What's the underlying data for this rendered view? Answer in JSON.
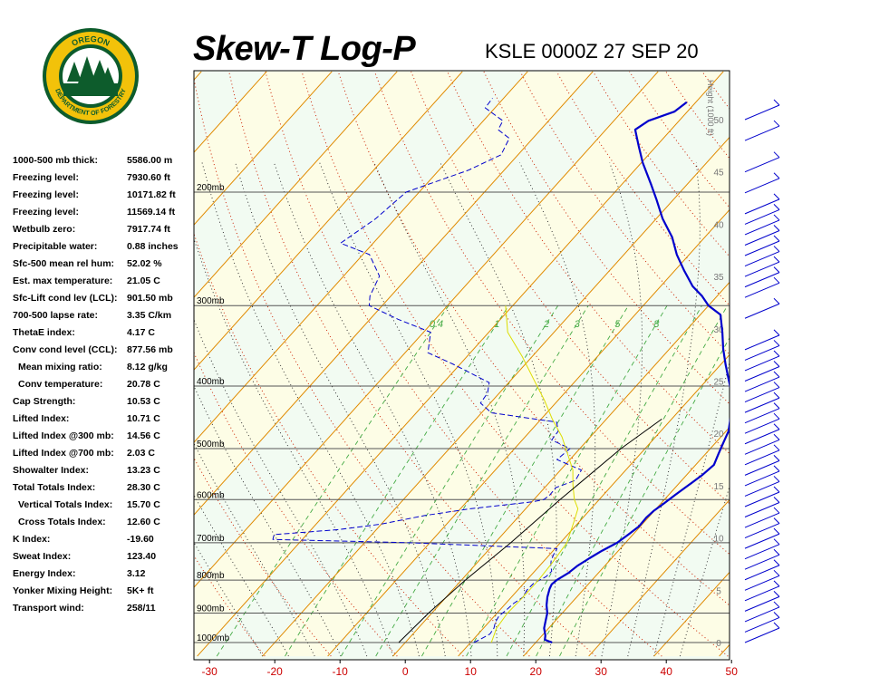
{
  "header": {
    "title": "Skew-T Log-P",
    "station": "KSLE 0000Z 27 SEP 20"
  },
  "logo": {
    "top_text": "OREGON",
    "bottom_text": "DEPARTMENT OF FORESTRY",
    "colors": {
      "ring": "#f2c20a",
      "inner": "#0d5c2c",
      "sky": "#ffffff",
      "trees": "#0d5c2c"
    }
  },
  "indices": [
    {
      "label": "1000-500 mb thick:",
      "value": "5586.00 m",
      "indent": false
    },
    {
      "label": "Freezing level:",
      "value": "7930.60 ft",
      "indent": false
    },
    {
      "label": "Freezing level:",
      "value": "10171.82 ft",
      "indent": false
    },
    {
      "label": "Freezing level:",
      "value": "11569.14 ft",
      "indent": false
    },
    {
      "label": "Wetbulb zero:",
      "value": "7917.74 ft",
      "indent": false
    },
    {
      "label": "Precipitable water:",
      "value": "0.88 inches",
      "indent": false
    },
    {
      "label": "Sfc-500 mean rel hum:",
      "value": "52.02 %",
      "indent": false
    },
    {
      "label": "Est. max temperature:",
      "value": "21.05 C",
      "indent": false
    },
    {
      "label": "Sfc-Lift cond lev (LCL):",
      "value": "901.50 mb",
      "indent": false
    },
    {
      "label": "700-500 lapse rate:",
      "value": "3.35 C/km",
      "indent": false
    },
    {
      "label": "ThetaE index:",
      "value": "4.17 C",
      "indent": false
    },
    {
      "label": "Conv cond level (CCL):",
      "value": "877.56 mb",
      "indent": false
    },
    {
      "label": "Mean mixing ratio:",
      "value": "8.12 g/kg",
      "indent": true
    },
    {
      "label": "Conv temperature:",
      "value": "20.78 C",
      "indent": true
    },
    {
      "label": "Cap Strength:",
      "value": "10.53 C",
      "indent": false
    },
    {
      "label": "Lifted Index:",
      "value": "10.71 C",
      "indent": false
    },
    {
      "label": "Lifted Index @300 mb:",
      "value": "14.56 C",
      "indent": false
    },
    {
      "label": "Lifted Index @700 mb:",
      "value": "2.03 C",
      "indent": false
    },
    {
      "label": "Showalter Index:",
      "value": "13.23 C",
      "indent": false
    },
    {
      "label": "Total Totals Index:",
      "value": "28.30 C",
      "indent": false
    },
    {
      "label": "Vertical Totals Index:",
      "value": "15.70 C",
      "indent": true
    },
    {
      "label": "Cross Totals Index:",
      "value": "12.60 C",
      "indent": true
    },
    {
      "label": "K Index:",
      "value": "-19.60",
      "indent": false
    },
    {
      "label": "Sweat Index:",
      "value": "123.40",
      "indent": false
    },
    {
      "label": "Energy Index:",
      "value": "3.12",
      "indent": false
    },
    {
      "label": "Yonker Mixing Height:",
      "value": "5K+ ft",
      "indent": false
    },
    {
      "label": "Transport wind:",
      "value": "258/11",
      "indent": false
    }
  ],
  "chart_data": {
    "type": "line",
    "title": "Skew-T Log-P",
    "subtitle": "KSLE 0000Z 27 SEP 20",
    "x_axis": {
      "label": "",
      "ticks": [
        -30,
        -20,
        -10,
        0,
        10,
        20,
        30,
        40,
        50
      ],
      "range": [
        -32.6,
        50.4
      ]
    },
    "pressure_axis": {
      "label": "",
      "ticks_mb": [
        200,
        300,
        400,
        500,
        600,
        700,
        800,
        900,
        1000
      ],
      "tick_labels": [
        "200mb",
        "300mb",
        "400mb",
        "500mb",
        "600mb",
        "700mb",
        "800mb",
        "900mb",
        "1000mb"
      ],
      "scale": "log",
      "range_mb": [
        1030,
        140
      ]
    },
    "height_axis": {
      "label": "Height (1000 ft)",
      "ticks_kft": [
        0,
        5,
        10,
        15,
        20,
        25,
        30,
        35,
        40,
        45,
        50
      ]
    },
    "mixing_ratio_labels": [
      "0.4",
      "1",
      "2",
      "3",
      "5",
      "8"
    ],
    "series": [
      {
        "style": "solid-blue-thick",
        "color": "#0000cc",
        "points": [
          [
            1000,
            22.5
          ],
          [
            990,
            21.0
          ],
          [
            975,
            20.5
          ],
          [
            950,
            19.3
          ],
          [
            925,
            18.5
          ],
          [
            900,
            17.7
          ],
          [
            875,
            16.5
          ],
          [
            850,
            15.5
          ],
          [
            825,
            14.7
          ],
          [
            812,
            14.4
          ],
          [
            800,
            14.6
          ],
          [
            780,
            15.4
          ],
          [
            760,
            15.8
          ],
          [
            740,
            16.6
          ],
          [
            720,
            17.5
          ],
          [
            700,
            18.7
          ],
          [
            680,
            19.3
          ],
          [
            660,
            19.8
          ],
          [
            640,
            19.7
          ],
          [
            625,
            19.9
          ],
          [
            610,
            20.4
          ],
          [
            590,
            21.0
          ],
          [
            570,
            21.7
          ],
          [
            550,
            22.4
          ],
          [
            530,
            22.8
          ],
          [
            510,
            22.0
          ],
          [
            490,
            21.2
          ],
          [
            470,
            20.4
          ],
          [
            450,
            19.0
          ],
          [
            430,
            17.4
          ],
          [
            410,
            15.6
          ],
          [
            390,
            13.2
          ],
          [
            370,
            10.7
          ],
          [
            350,
            8.2
          ],
          [
            330,
            5.8
          ],
          [
            310,
            3.1
          ],
          [
            300,
            0.0
          ],
          [
            290,
            -2.3
          ],
          [
            280,
            -5.1
          ],
          [
            265,
            -8.5
          ],
          [
            250,
            -11.9
          ],
          [
            235,
            -15.0
          ],
          [
            220,
            -19.0
          ],
          [
            205,
            -22.7
          ],
          [
            195,
            -25.4
          ],
          [
            180,
            -29.8
          ],
          [
            170,
            -32.6
          ],
          [
            160,
            -35.5
          ],
          [
            155,
            -34.7
          ],
          [
            150,
            -32.0
          ],
          [
            145,
            -31.4
          ]
        ]
      },
      {
        "style": "dashed-blue",
        "color": "#0000cc",
        "points": [
          [
            1000,
            10.5
          ],
          [
            990,
            11.0
          ],
          [
            970,
            11.8
          ],
          [
            950,
            11.6
          ],
          [
            930,
            11.0
          ],
          [
            910,
            10.7
          ],
          [
            890,
            11.0
          ],
          [
            870,
            11.2
          ],
          [
            850,
            11.8
          ],
          [
            830,
            11.4
          ],
          [
            810,
            11.5
          ],
          [
            790,
            12.5
          ],
          [
            775,
            12.6
          ],
          [
            760,
            11.7
          ],
          [
            745,
            11.0
          ],
          [
            730,
            10.6
          ],
          [
            715,
            10.3
          ],
          [
            700,
            -13.0
          ],
          [
            697,
            -21.0
          ],
          [
            692,
            -34.5
          ],
          [
            680,
            -35.0
          ],
          [
            668,
            -25.8
          ],
          [
            655,
            -20.0
          ],
          [
            635,
            -14.5
          ],
          [
            620,
            -8.5
          ],
          [
            605,
            0.0
          ],
          [
            600,
            1.5
          ],
          [
            590,
            1.8
          ],
          [
            575,
            1.7
          ],
          [
            560,
            3.7
          ],
          [
            540,
            3.2
          ],
          [
            520,
            -2.0
          ],
          [
            500,
            -1.5
          ],
          [
            485,
            -5.5
          ],
          [
            470,
            -5.7
          ],
          [
            455,
            -7.2
          ],
          [
            440,
            -18.5
          ],
          [
            425,
            -21.5
          ],
          [
            410,
            -21.8
          ],
          [
            395,
            -23.0
          ],
          [
            370,
            -31.0
          ],
          [
            355,
            -36.5
          ],
          [
            330,
            -38.9
          ],
          [
            315,
            -45.7
          ],
          [
            300,
            -52.0
          ],
          [
            290,
            -53.2
          ],
          [
            270,
            -54.5
          ],
          [
            250,
            -59.0
          ],
          [
            240,
            -65.0
          ],
          [
            220,
            -63.0
          ],
          [
            200,
            -62.0
          ],
          [
            185,
            -55.5
          ],
          [
            175,
            -52.6
          ],
          [
            165,
            -53.6
          ],
          [
            160,
            -56.5
          ],
          [
            155,
            -57.0
          ],
          [
            148,
            -61.5
          ],
          [
            143,
            -61.7
          ]
        ]
      },
      {
        "style": "thin-yellow",
        "color": "#dddd00",
        "points": [
          [
            1000,
            13.2
          ],
          [
            950,
            12.0
          ],
          [
            900,
            11.6
          ],
          [
            850,
            11.8
          ],
          [
            800,
            11.8
          ],
          [
            750,
            11.5
          ],
          [
            700,
            11.0
          ],
          [
            650,
            9.2
          ],
          [
            620,
            8.0
          ],
          [
            600,
            6.2
          ],
          [
            570,
            4.0
          ],
          [
            540,
            1.9
          ],
          [
            510,
            -1.1
          ],
          [
            480,
            -4.3
          ],
          [
            450,
            -8.3
          ],
          [
            420,
            -12.2
          ],
          [
            390,
            -16.7
          ],
          [
            360,
            -21.5
          ],
          [
            330,
            -27.1
          ],
          [
            300,
            -31.1
          ]
        ]
      },
      {
        "style": "thin-black",
        "color": "#000000",
        "points": [
          [
            1000,
            -1.0
          ],
          [
            900,
            -0.5
          ],
          [
            800,
            0.6
          ],
          [
            700,
            2.4
          ],
          [
            600,
            4.0
          ],
          [
            500,
            6.3
          ],
          [
            450,
            8.5
          ]
        ]
      }
    ],
    "wind_barbs_kft": [
      50,
      48,
      45,
      43,
      41,
      40,
      39,
      38,
      37,
      36,
      35,
      34,
      33,
      31,
      28,
      27,
      26,
      25,
      24,
      23,
      22,
      21,
      20,
      19,
      18,
      17,
      16,
      15,
      14,
      13,
      12,
      11,
      10,
      9,
      8,
      7,
      6,
      5,
      4,
      3,
      2,
      1,
      0
    ],
    "legend": "none",
    "grid": true
  }
}
